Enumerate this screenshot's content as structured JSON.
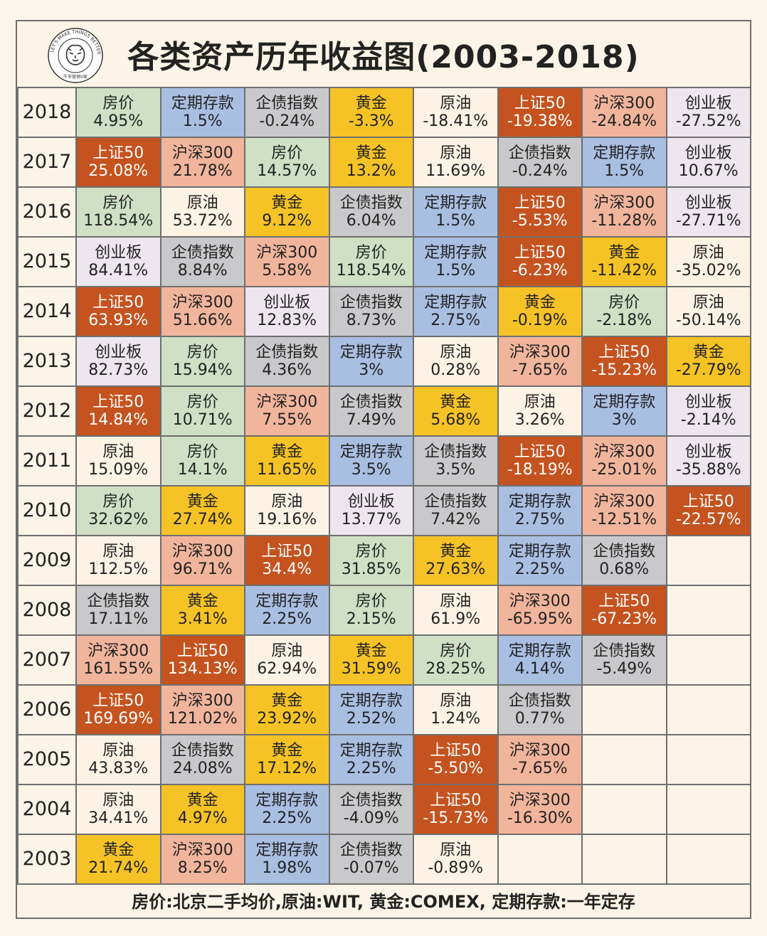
{
  "title": "各类资产历年收益图(2003-2018)",
  "logo": {
    "icon": "tiger-logo-icon",
    "ring_text": "LET'S MAKE THINGS BETTER",
    "sub_text": "牛市营销V家"
  },
  "footer": "房价:北京二手均价,原油:WIT, 黄金:COMEX, 定期存款:一年定存",
  "colors": {
    "房价": "#cfe0c4",
    "定期存款": "#a9bfe2",
    "企债指数": "#c9c9cc",
    "黄金": "#f6c326",
    "原油": "#fdf3e5",
    "上证50": "#c4531f",
    "沪深300": "#f1b59c",
    "创业板": "#ede6ee"
  },
  "chart_data": {
    "type": "table",
    "title": "各类资产历年收益图(2003-2018)",
    "rows": [
      {
        "year": "2018",
        "cells": [
          [
            "房价",
            "4.95%"
          ],
          [
            "定期存款",
            "1.5%"
          ],
          [
            "企债指数",
            "-0.24%"
          ],
          [
            "黄金",
            "-3.3%"
          ],
          [
            "原油",
            "-18.41%"
          ],
          [
            "上证50",
            "-19.38%"
          ],
          [
            "沪深300",
            "-24.84%"
          ],
          [
            "创业板",
            "-27.52%"
          ]
        ]
      },
      {
        "year": "2017",
        "cells": [
          [
            "上证50",
            "25.08%"
          ],
          [
            "沪深300",
            "21.78%"
          ],
          [
            "房价",
            "14.57%"
          ],
          [
            "黄金",
            "13.2%"
          ],
          [
            "原油",
            "11.69%"
          ],
          [
            "企债指数",
            "-0.24%"
          ],
          [
            "定期存款",
            "1.5%"
          ],
          [
            "创业板",
            "10.67%"
          ]
        ]
      },
      {
        "year": "2016",
        "cells": [
          [
            "房价",
            "118.54%"
          ],
          [
            "原油",
            "53.72%"
          ],
          [
            "黄金",
            "9.12%"
          ],
          [
            "企债指数",
            "6.04%"
          ],
          [
            "定期存款",
            "1.5%"
          ],
          [
            "上证50",
            "-5.53%"
          ],
          [
            "沪深300",
            "-11.28%"
          ],
          [
            "创业板",
            "-27.71%"
          ]
        ]
      },
      {
        "year": "2015",
        "cells": [
          [
            "创业板",
            "84.41%"
          ],
          [
            "企债指数",
            "8.84%"
          ],
          [
            "沪深300",
            "5.58%"
          ],
          [
            "房价",
            "118.54%"
          ],
          [
            "定期存款",
            "1.5%"
          ],
          [
            "上证50",
            "-6.23%"
          ],
          [
            "黄金",
            "-11.42%"
          ],
          [
            "原油",
            "-35.02%"
          ]
        ]
      },
      {
        "year": "2014",
        "cells": [
          [
            "上证50",
            "63.93%"
          ],
          [
            "沪深300",
            "51.66%"
          ],
          [
            "创业板",
            "12.83%"
          ],
          [
            "企债指数",
            "8.73%"
          ],
          [
            "定期存款",
            "2.75%"
          ],
          [
            "黄金",
            "-0.19%"
          ],
          [
            "房价",
            "-2.18%"
          ],
          [
            "原油",
            "-50.14%"
          ]
        ]
      },
      {
        "year": "2013",
        "cells": [
          [
            "创业板",
            "82.73%"
          ],
          [
            "房价",
            "15.94%"
          ],
          [
            "企债指数",
            "4.36%"
          ],
          [
            "定期存款",
            "3%"
          ],
          [
            "原油",
            "0.28%"
          ],
          [
            "沪深300",
            "-7.65%"
          ],
          [
            "上证50",
            "-15.23%"
          ],
          [
            "黄金",
            "-27.79%"
          ]
        ]
      },
      {
        "year": "2012",
        "cells": [
          [
            "上证50",
            "14.84%"
          ],
          [
            "房价",
            "10.71%"
          ],
          [
            "沪深300",
            "7.55%"
          ],
          [
            "企债指数",
            "7.49%"
          ],
          [
            "黄金",
            "5.68%"
          ],
          [
            "原油",
            "3.26%"
          ],
          [
            "定期存款",
            "3%"
          ],
          [
            "创业板",
            "-2.14%"
          ]
        ]
      },
      {
        "year": "2011",
        "cells": [
          [
            "原油",
            "15.09%"
          ],
          [
            "房价",
            "14.1%"
          ],
          [
            "黄金",
            "11.65%"
          ],
          [
            "定期存款",
            "3.5%"
          ],
          [
            "企债指数",
            "3.5%"
          ],
          [
            "上证50",
            "-18.19%"
          ],
          [
            "沪深300",
            "-25.01%"
          ],
          [
            "创业板",
            "-35.88%"
          ]
        ]
      },
      {
        "year": "2010",
        "cells": [
          [
            "房价",
            "32.62%"
          ],
          [
            "黄金",
            "27.74%"
          ],
          [
            "原油",
            "19.16%"
          ],
          [
            "创业板",
            "13.77%"
          ],
          [
            "企债指数",
            "7.42%"
          ],
          [
            "定期存款",
            "2.75%"
          ],
          [
            "沪深300",
            "-12.51%"
          ],
          [
            "上证50",
            "-22.57%"
          ]
        ]
      },
      {
        "year": "2009",
        "cells": [
          [
            "原油",
            "112.5%"
          ],
          [
            "沪深300",
            "96.71%"
          ],
          [
            "上证50",
            "34.4%"
          ],
          [
            "房价",
            "31.85%"
          ],
          [
            "黄金",
            "27.63%"
          ],
          [
            "定期存款",
            "2.25%"
          ],
          [
            "企债指数",
            "0.68%"
          ]
        ]
      },
      {
        "year": "2008",
        "cells": [
          [
            "企债指数",
            "17.11%"
          ],
          [
            "黄金",
            "3.41%"
          ],
          [
            "定期存款",
            "2.25%"
          ],
          [
            "房价",
            "2.15%"
          ],
          [
            "原油",
            "61.9%"
          ],
          [
            "沪深300",
            "-65.95%"
          ],
          [
            "上证50",
            "-67.23%"
          ]
        ]
      },
      {
        "year": "2007",
        "cells": [
          [
            "沪深300",
            "161.55%"
          ],
          [
            "上证50",
            "134.13%"
          ],
          [
            "原油",
            "62.94%"
          ],
          [
            "黄金",
            "31.59%"
          ],
          [
            "房价",
            "28.25%"
          ],
          [
            "定期存款",
            "4.14%"
          ],
          [
            "企债指数",
            "-5.49%"
          ]
        ]
      },
      {
        "year": "2006",
        "cells": [
          [
            "上证50",
            "169.69%"
          ],
          [
            "沪深300",
            "121.02%"
          ],
          [
            "黄金",
            "23.92%"
          ],
          [
            "定期存款",
            "2.52%"
          ],
          [
            "原油",
            "1.24%"
          ],
          [
            "企债指数",
            "0.77%"
          ]
        ]
      },
      {
        "year": "2005",
        "cells": [
          [
            "原油",
            "43.83%"
          ],
          [
            "企债指数",
            "24.08%"
          ],
          [
            "黄金",
            "17.12%"
          ],
          [
            "定期存款",
            "2.25%"
          ],
          [
            "上证50",
            "-5.50%"
          ],
          [
            "沪深300",
            "-7.65%"
          ]
        ]
      },
      {
        "year": "2004",
        "cells": [
          [
            "原油",
            "34.41%"
          ],
          [
            "黄金",
            "4.97%"
          ],
          [
            "定期存款",
            "2.25%"
          ],
          [
            "企债指数",
            "-4.09%"
          ],
          [
            "上证50",
            "-15.73%"
          ],
          [
            "沪深300",
            "-16.30%"
          ]
        ]
      },
      {
        "year": "2003",
        "cells": [
          [
            "黄金",
            "21.74%"
          ],
          [
            "沪深300",
            "8.25%"
          ],
          [
            "定期存款",
            "1.98%"
          ],
          [
            "企债指数",
            "-0.07%"
          ],
          [
            "原油",
            "-0.89%"
          ]
        ]
      }
    ]
  }
}
